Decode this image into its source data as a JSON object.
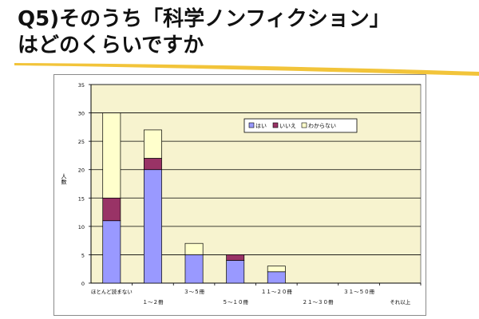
{
  "slide": {
    "title_line1": "Q5)そのうち「科学ノンフィクション」",
    "title_line2": "はどのくらいですか",
    "colors": {
      "underline": "#f2c43a"
    }
  },
  "chart_data": {
    "type": "bar",
    "stacked": true,
    "categories": [
      "ほとんど読まない",
      "１～２冊",
      "３～５冊",
      "５～１０冊",
      "１１～２０冊",
      "２１～３０冊",
      "３１～５０冊",
      "それ以上"
    ],
    "series": [
      {
        "name": "はい",
        "values": [
          11,
          20,
          5,
          4,
          2,
          0,
          0,
          0
        ],
        "color": "#9999ff"
      },
      {
        "name": "いいえ",
        "values": [
          4,
          2,
          0,
          1,
          0,
          0,
          0,
          0
        ],
        "color": "#993366"
      },
      {
        "name": "わからない",
        "values": [
          15,
          5,
          2,
          0,
          1,
          0,
          0,
          0
        ],
        "color": "#ffffcc"
      }
    ],
    "ylabel": "人数",
    "ylim": [
      0,
      35
    ],
    "yticks": [
      0,
      5,
      10,
      15,
      20,
      25,
      30,
      35
    ],
    "grid": true,
    "legend_position": "top-right",
    "plot_background": "#f7f3cf",
    "gridline_color": "#000000"
  }
}
